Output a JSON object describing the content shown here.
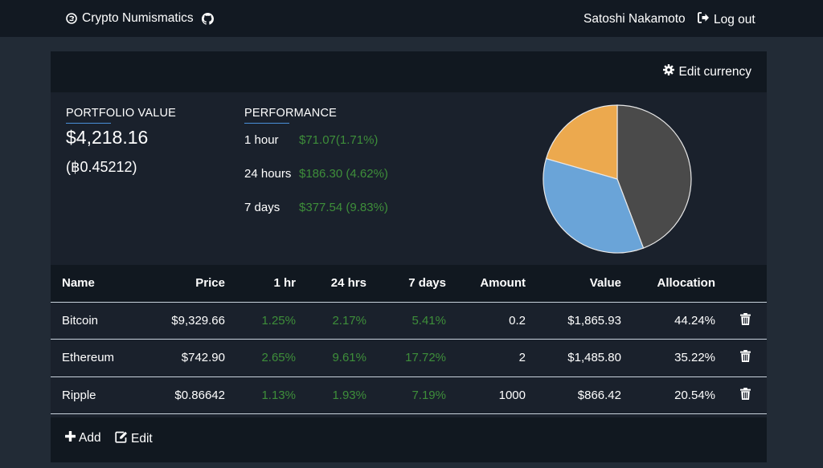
{
  "nav": {
    "brand": "Crypto Numismatics",
    "user": "Satoshi Nakamoto",
    "logout_label": "Log out"
  },
  "card": {
    "edit_currency_label": "Edit currency"
  },
  "portfolio": {
    "label": "PORTFOLIO VALUE",
    "value": "$4,218.16",
    "btc_value": "(฿0.45212)"
  },
  "performance": {
    "label": "PERFORMANCE",
    "rows": [
      {
        "period": "1 hour",
        "change": "$71.07(1.71%)"
      },
      {
        "period": "24 hours",
        "change": "$186.30 (4.62%)"
      },
      {
        "period": "7 days",
        "change": "$377.54 (9.83%)"
      }
    ]
  },
  "allocation_chart": {
    "type": "pie",
    "slices": [
      {
        "name": "Bitcoin",
        "value": 44.24,
        "color": "#4a4a4a"
      },
      {
        "name": "Ethereum",
        "value": 35.22,
        "color": "#6aa4d8"
      },
      {
        "name": "Ripple",
        "value": 20.54,
        "color": "#eca94e"
      }
    ]
  },
  "table": {
    "headers": {
      "name": "Name",
      "price": "Price",
      "h1": "1 hr",
      "h24": "24 hrs",
      "d7": "7 days",
      "amount": "Amount",
      "value": "Value",
      "allocation": "Allocation"
    },
    "rows": [
      {
        "name": "Bitcoin",
        "price": "$9,329.66",
        "h1": "1.25%",
        "h24": "2.17%",
        "d7": "5.41%",
        "amount": "0.2",
        "value": "$1,865.93",
        "allocation": "44.24%"
      },
      {
        "name": "Ethereum",
        "price": "$742.90",
        "h1": "2.65%",
        "h24": "9.61%",
        "d7": "17.72%",
        "amount": "2",
        "value": "$1,485.80",
        "allocation": "35.22%"
      },
      {
        "name": "Ripple",
        "price": "$0.86642",
        "h1": "1.13%",
        "h24": "1.93%",
        "d7": "7.19%",
        "amount": "1000",
        "value": "$866.42",
        "allocation": "20.54%"
      }
    ]
  },
  "footer": {
    "add_label": "Add",
    "edit_label": "Edit"
  },
  "colors": {
    "positive": "#3e8e3a",
    "accent": "#4a90d9"
  }
}
